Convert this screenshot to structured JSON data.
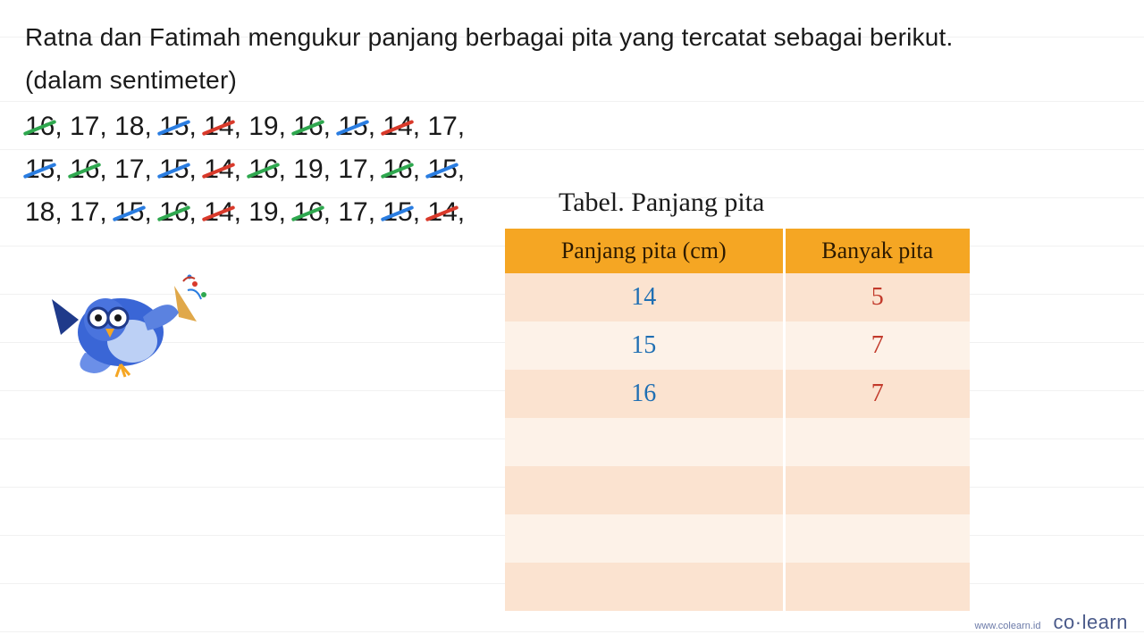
{
  "problem": {
    "line1": "Ratna dan Fatimah mengukur panjang berbagai pita yang tercatat sebagai berikut.",
    "line2": "(dalam sentimeter)"
  },
  "data_rows": [
    [
      {
        "v": "16",
        "s": "green"
      },
      {
        "v": "17",
        "s": null
      },
      {
        "v": "18",
        "s": null
      },
      {
        "v": "15",
        "s": "blue"
      },
      {
        "v": "14",
        "s": "red"
      },
      {
        "v": "19",
        "s": null
      },
      {
        "v": "16",
        "s": "green"
      },
      {
        "v": "15",
        "s": "blue"
      },
      {
        "v": "14",
        "s": "red"
      },
      {
        "v": "17",
        "s": null
      }
    ],
    [
      {
        "v": "15",
        "s": "blue"
      },
      {
        "v": "16",
        "s": "green"
      },
      {
        "v": "17",
        "s": null
      },
      {
        "v": "15",
        "s": "blue"
      },
      {
        "v": "14",
        "s": "red"
      },
      {
        "v": "16",
        "s": "green"
      },
      {
        "v": "19",
        "s": null
      },
      {
        "v": "17",
        "s": null
      },
      {
        "v": "16",
        "s": "green"
      },
      {
        "v": "15",
        "s": "blue"
      }
    ],
    [
      {
        "v": "18",
        "s": null
      },
      {
        "v": "17",
        "s": null
      },
      {
        "v": "15",
        "s": "blue"
      },
      {
        "v": "16",
        "s": "green"
      },
      {
        "v": "14",
        "s": "red"
      },
      {
        "v": "19",
        "s": null
      },
      {
        "v": "16",
        "s": "green"
      },
      {
        "v": "17",
        "s": null
      },
      {
        "v": "15",
        "s": "blue"
      },
      {
        "v": "14",
        "s": "red"
      }
    ]
  ],
  "table": {
    "title": "Tabel. Panjang pita",
    "col1": "Panjang pita (cm)",
    "col2": "Banyak pita",
    "rows": [
      {
        "value": "14",
        "count": "5"
      },
      {
        "value": "15",
        "count": "7"
      },
      {
        "value": "16",
        "count": "7"
      },
      {
        "value": "",
        "count": ""
      },
      {
        "value": "",
        "count": ""
      },
      {
        "value": "",
        "count": ""
      },
      {
        "value": "",
        "count": ""
      }
    ]
  },
  "colors": {
    "header_bg": "#f5a623",
    "row_odd_bg": "#fbe3d0",
    "row_even_bg": "#fdf2e8",
    "value_text": "#1f6fb3",
    "count_text": "#c23a2b",
    "strike_red": "#d93a2b",
    "strike_green": "#2fa84f",
    "strike_blue": "#2a7de1",
    "problem_text": "#1a1a1a"
  },
  "branding": {
    "url": "www.colearn.id",
    "logo_left": "co",
    "logo_dot": "·",
    "logo_right": "learn"
  }
}
